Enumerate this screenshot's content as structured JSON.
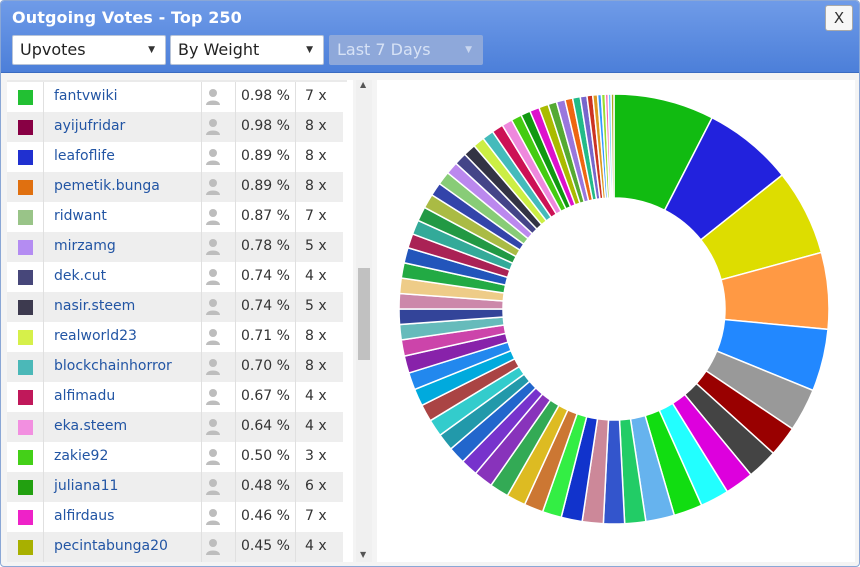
{
  "window": {
    "title": "Outgoing Votes - Top 250",
    "close_label": "X"
  },
  "filters": {
    "vote_type": "Upvotes",
    "sort": "By Weight",
    "period": "Last 7 Days"
  },
  "colors": {
    "title_bar": "#5a8ae0",
    "link": "#2255a4"
  },
  "rows": [
    {
      "account": "fantvwiki",
      "percent": "0.98 %",
      "count": "7 x",
      "color": "#22c033"
    },
    {
      "account": "ayijufridar",
      "percent": "0.98 %",
      "count": "8 x",
      "color": "#880044"
    },
    {
      "account": "leafoflife",
      "percent": "0.89 %",
      "count": "8 x",
      "color": "#2030d0"
    },
    {
      "account": "pemetik.bunga",
      "percent": "0.89 %",
      "count": "8 x",
      "color": "#e07010"
    },
    {
      "account": "ridwant",
      "percent": "0.87 %",
      "count": "7 x",
      "color": "#99c488"
    },
    {
      "account": "mirzamg",
      "percent": "0.78 %",
      "count": "5 x",
      "color": "#b48cf2"
    },
    {
      "account": "dek.cut",
      "percent": "0.74 %",
      "count": "4 x",
      "color": "#47477a"
    },
    {
      "account": "nasir.steem",
      "percent": "0.74 %",
      "count": "5 x",
      "color": "#3d3a4f"
    },
    {
      "account": "realworld23",
      "percent": "0.71 %",
      "count": "8 x",
      "color": "#d6f04a"
    },
    {
      "account": "blockchainhorror",
      "percent": "0.70 %",
      "count": "8 x",
      "color": "#4bb8b8"
    },
    {
      "account": "alfimadu",
      "percent": "0.67 %",
      "count": "4 x",
      "color": "#c0185a"
    },
    {
      "account": "eka.steem",
      "percent": "0.64 %",
      "count": "4 x",
      "color": "#f28fe0"
    },
    {
      "account": "zakie92",
      "percent": "0.50 %",
      "count": "3 x",
      "color": "#44d018"
    },
    {
      "account": "juliana11",
      "percent": "0.48 %",
      "count": "6 x",
      "color": "#22a010"
    },
    {
      "account": "alfirdaus",
      "percent": "0.46 %",
      "count": "7 x",
      "color": "#ee22c8"
    },
    {
      "account": "pecintabunga20",
      "percent": "0.45 %",
      "count": "4 x",
      "color": "#a8b000"
    }
  ],
  "chart_data": {
    "type": "pie",
    "values": [
      10.5,
      9.4,
      9.0,
      8.0,
      6.5,
      4.5,
      3.2,
      3.2,
      3.0,
      3.0,
      3.0,
      3.0,
      2.2,
      2.2,
      2.2,
      2.2,
      2.0,
      2.0,
      2.0,
      2.0,
      2.0,
      1.8,
      1.8,
      1.8,
      1.8,
      1.8,
      1.8,
      1.8,
      1.8,
      1.7,
      1.6,
      1.6,
      1.6,
      1.6,
      1.6,
      1.6,
      1.5,
      1.5,
      1.5,
      1.5,
      1.4,
      1.4,
      1.3,
      1.3,
      1.3,
      1.2,
      1.2,
      1.2,
      1.1,
      1.1,
      1.0,
      1.0,
      1.0,
      0.9,
      0.9,
      0.8,
      0.8,
      0.7,
      0.6,
      0.5,
      0.4,
      0.4,
      0.3,
      0.3,
      0.3
    ],
    "colors": [
      "#11bb11",
      "#2222dd",
      "#dddd00",
      "#ff9944",
      "#2288ff",
      "#999999",
      "#990000",
      "#444444",
      "#dd00dd",
      "#22ffff",
      "#11dd11",
      "#66b3ee",
      "#22cc66",
      "#3355cc",
      "#cc8899",
      "#1133cc",
      "#33ee44",
      "#cc7733",
      "#ddbb22",
      "#33aa55",
      "#8833bb",
      "#7733cc",
      "#2266cc",
      "#2299aa",
      "#33cccc",
      "#aa4444",
      "#00aadd",
      "#2288ee",
      "#8822aa",
      "#cc44aa",
      "#66bbbb",
      "#334499",
      "#cc88aa",
      "#eecc88",
      "#22aa44",
      "#2255bb",
      "#aa2255",
      "#33aa99",
      "#229944",
      "#aabb44",
      "#3344aa",
      "#88cc77",
      "#bb88ee",
      "#444488",
      "#333344",
      "#ccee44",
      "#44bbbb",
      "#cc1155",
      "#ee88dd",
      "#44cc11",
      "#119911",
      "#dd11cc",
      "#aabb00",
      "#55aa33",
      "#9977dd",
      "#ee6611",
      "#22bb88",
      "#7766cc",
      "#cc3322",
      "#dd9922",
      "#3399ff",
      "#99dd33",
      "#ff66aa",
      "#66ccff",
      "#aaaa22"
    ],
    "donut": true
  }
}
